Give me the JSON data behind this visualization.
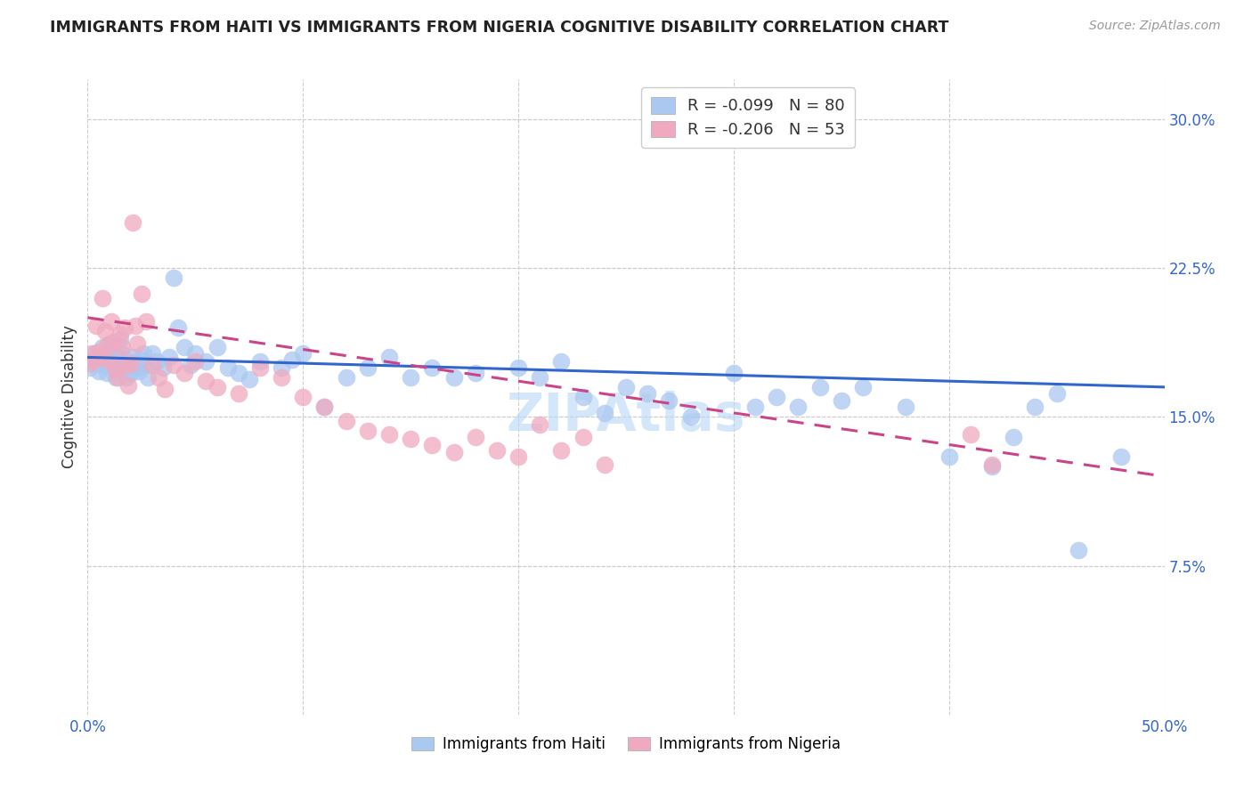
{
  "title": "IMMIGRANTS FROM HAITI VS IMMIGRANTS FROM NIGERIA COGNITIVE DISABILITY CORRELATION CHART",
  "source": "Source: ZipAtlas.com",
  "ylabel": "Cognitive Disability",
  "xlim": [
    0.0,
    0.5
  ],
  "ylim": [
    0.0,
    0.32
  ],
  "xticks": [
    0.0,
    0.1,
    0.2,
    0.3,
    0.4,
    0.5
  ],
  "xticklabels": [
    "0.0%",
    "",
    "",
    "",
    "",
    "50.0%"
  ],
  "ytick_vals": [
    0.075,
    0.15,
    0.225,
    0.3
  ],
  "ytick_labels": [
    "7.5%",
    "15.0%",
    "22.5%",
    "30.0%"
  ],
  "haiti_color": "#aac8f0",
  "nigeria_color": "#f0aac0",
  "haiti_line_color": "#3366cc",
  "nigeria_line_color": "#cc4488",
  "haiti_intercept": 0.18,
  "haiti_slope": -0.03,
  "nigeria_intercept": 0.2,
  "nigeria_slope": -0.16,
  "legend_R_haiti": "-0.099",
  "legend_N_haiti": "80",
  "legend_R_nigeria": "-0.206",
  "legend_N_nigeria": "53",
  "watermark": "ZIPAtlas",
  "haiti_x": [
    0.001,
    0.002,
    0.003,
    0.004,
    0.005,
    0.006,
    0.007,
    0.008,
    0.009,
    0.01,
    0.01,
    0.011,
    0.012,
    0.013,
    0.014,
    0.015,
    0.015,
    0.016,
    0.017,
    0.018,
    0.019,
    0.02,
    0.021,
    0.022,
    0.023,
    0.024,
    0.025,
    0.026,
    0.027,
    0.028,
    0.03,
    0.032,
    0.035,
    0.038,
    0.04,
    0.042,
    0.045,
    0.048,
    0.05,
    0.055,
    0.06,
    0.065,
    0.07,
    0.075,
    0.08,
    0.09,
    0.095,
    0.1,
    0.11,
    0.12,
    0.13,
    0.14,
    0.15,
    0.16,
    0.17,
    0.18,
    0.2,
    0.21,
    0.22,
    0.23,
    0.24,
    0.25,
    0.26,
    0.27,
    0.28,
    0.3,
    0.31,
    0.32,
    0.33,
    0.34,
    0.35,
    0.36,
    0.38,
    0.4,
    0.42,
    0.43,
    0.44,
    0.45,
    0.46,
    0.48
  ],
  "haiti_y": [
    0.175,
    0.178,
    0.182,
    0.177,
    0.173,
    0.18,
    0.185,
    0.176,
    0.172,
    0.179,
    0.187,
    0.183,
    0.176,
    0.17,
    0.18,
    0.189,
    0.175,
    0.182,
    0.177,
    0.17,
    0.175,
    0.172,
    0.18,
    0.178,
    0.175,
    0.173,
    0.179,
    0.182,
    0.176,
    0.17,
    0.182,
    0.178,
    0.175,
    0.18,
    0.22,
    0.195,
    0.185,
    0.176,
    0.182,
    0.178,
    0.185,
    0.175,
    0.172,
    0.169,
    0.178,
    0.175,
    0.179,
    0.182,
    0.155,
    0.17,
    0.175,
    0.18,
    0.17,
    0.175,
    0.17,
    0.172,
    0.175,
    0.17,
    0.178,
    0.16,
    0.152,
    0.165,
    0.162,
    0.158,
    0.15,
    0.172,
    0.155,
    0.16,
    0.155,
    0.165,
    0.158,
    0.165,
    0.155,
    0.13,
    0.125,
    0.14,
    0.155,
    0.162,
    0.083,
    0.13
  ],
  "nigeria_x": [
    0.001,
    0.002,
    0.003,
    0.004,
    0.005,
    0.006,
    0.007,
    0.008,
    0.009,
    0.01,
    0.011,
    0.012,
    0.013,
    0.014,
    0.015,
    0.016,
    0.017,
    0.018,
    0.019,
    0.02,
    0.021,
    0.022,
    0.023,
    0.025,
    0.027,
    0.03,
    0.033,
    0.036,
    0.04,
    0.045,
    0.05,
    0.055,
    0.06,
    0.07,
    0.08,
    0.09,
    0.1,
    0.11,
    0.12,
    0.13,
    0.14,
    0.15,
    0.16,
    0.17,
    0.18,
    0.19,
    0.2,
    0.21,
    0.22,
    0.23,
    0.24,
    0.41,
    0.42
  ],
  "nigeria_y": [
    0.177,
    0.182,
    0.179,
    0.196,
    0.183,
    0.18,
    0.21,
    0.193,
    0.186,
    0.178,
    0.198,
    0.188,
    0.174,
    0.17,
    0.192,
    0.185,
    0.195,
    0.176,
    0.166,
    0.177,
    0.248,
    0.196,
    0.187,
    0.212,
    0.198,
    0.176,
    0.17,
    0.164,
    0.176,
    0.172,
    0.178,
    0.168,
    0.165,
    0.162,
    0.175,
    0.17,
    0.16,
    0.155,
    0.148,
    0.143,
    0.141,
    0.139,
    0.136,
    0.132,
    0.14,
    0.133,
    0.13,
    0.146,
    0.133,
    0.14,
    0.126,
    0.141,
    0.126
  ]
}
